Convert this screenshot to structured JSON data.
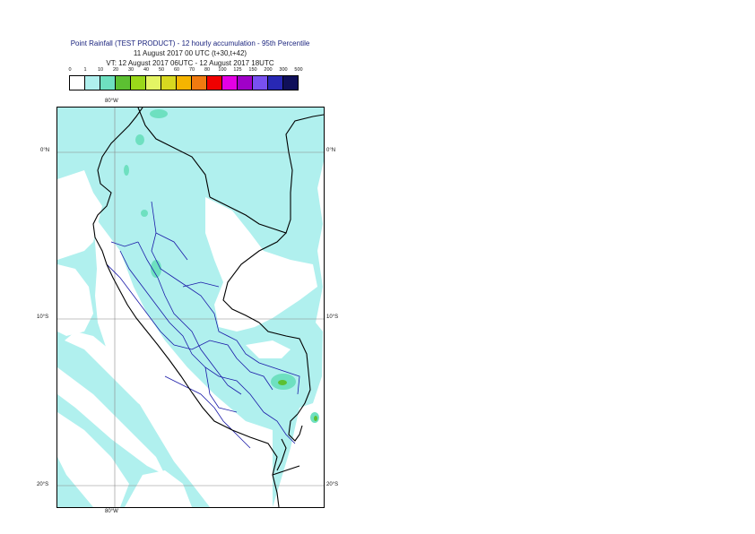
{
  "title": {
    "line1": "Point Rainfall (TEST PRODUCT) - 12 hourly accumulation - 95th Percentile",
    "line2": "11 August 2017 00 UTC (t+30,t+42)",
    "line3": "VT: 12 August 2017 06UTC - 12 August 2017 18UTC"
  },
  "legend": {
    "labels": [
      "0",
      "1",
      "10",
      "20",
      "30",
      "40",
      "50",
      "60",
      "70",
      "80",
      "100",
      "125",
      "150",
      "200",
      "300",
      "500"
    ],
    "colors": [
      "#ffffff",
      "#b0f0ee",
      "#6ee0c0",
      "#5cc032",
      "#9ad81a",
      "#e4f464",
      "#d8d820",
      "#f5b400",
      "#f07a10",
      "#f00000",
      "#e400e4",
      "#a000c8",
      "#7850f0",
      "#2828b4",
      "#10105a"
    ]
  },
  "axes": {
    "lat_labels": [
      "0°N",
      "10°S",
      "20°S"
    ],
    "lon_labels": [
      "80°W",
      "80°W"
    ]
  },
  "colors": {
    "rain_light": "#b0f0ee",
    "rain_moderate": "#6ee0c0",
    "rain_heavy": "#5cc032",
    "coastline": "#000000",
    "admin_borders": "#1a1aa8",
    "gridlines": "#888888"
  }
}
